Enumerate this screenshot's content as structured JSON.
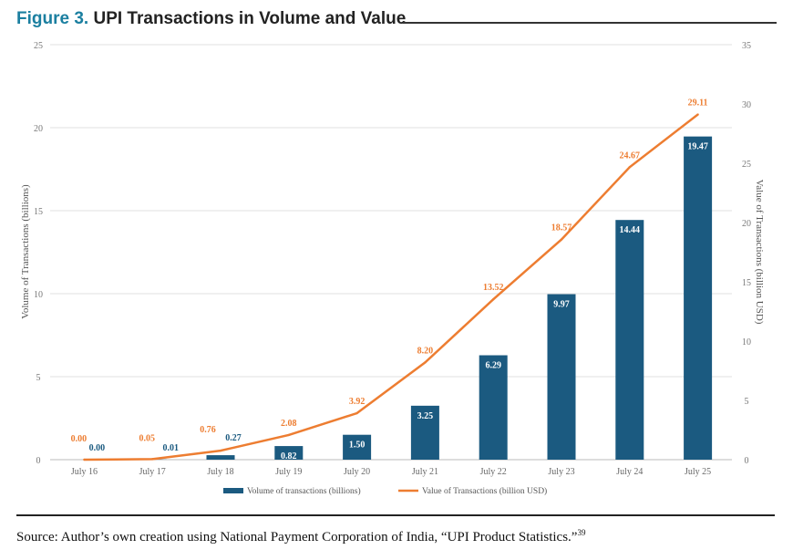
{
  "title_prefix": "Figure 3.",
  "title_text": "UPI Transactions in Volume and Value",
  "source_text": "Source: Author’s own creation using National Payment Corporation of India, “UPI Product Statistics.”",
  "source_note": "39",
  "chart_data": {
    "type": "bar+line",
    "categories": [
      "July 16",
      "July 17",
      "July 18",
      "July 19",
      "July 20",
      "July 21",
      "July 22",
      "July 23",
      "July 24",
      "July 25"
    ],
    "series": [
      {
        "name": "Volume of transactions (billions)",
        "type": "bar",
        "axis": "left",
        "color": "#1b5a80",
        "values": [
          0.0,
          0.01,
          0.27,
          0.82,
          1.5,
          3.25,
          6.29,
          9.97,
          14.44,
          19.47
        ],
        "labels": [
          "0.00",
          "0.01",
          "0.27",
          "0.82",
          "1.50",
          "3.25",
          "6.29",
          "9.97",
          "14.44",
          "19.47"
        ]
      },
      {
        "name": "Value of Transactions (billion USD)",
        "type": "line",
        "axis": "right",
        "color": "#ed7d31",
        "values": [
          0.0,
          0.05,
          0.76,
          2.08,
          3.92,
          8.2,
          13.52,
          18.57,
          24.67,
          29.11
        ],
        "labels": [
          "0.00",
          "0.05",
          "0.76",
          "2.08",
          "3.92",
          "8.20",
          "13.52",
          "18.57",
          "24.67",
          "29.11"
        ]
      }
    ],
    "ylabel_left": "Volume of Transactions (billions)",
    "ylabel_right": "Value of Transactions (billion USD)",
    "ylim_left": [
      0,
      25
    ],
    "yticks_left": [
      "0",
      "5",
      "10",
      "15",
      "20",
      "25"
    ],
    "ylim_right": [
      0,
      35
    ],
    "yticks_right": [
      "0",
      "5",
      "10",
      "15",
      "20",
      "25",
      "30",
      "35"
    ],
    "grid": true,
    "legend_placement": "bottom"
  }
}
